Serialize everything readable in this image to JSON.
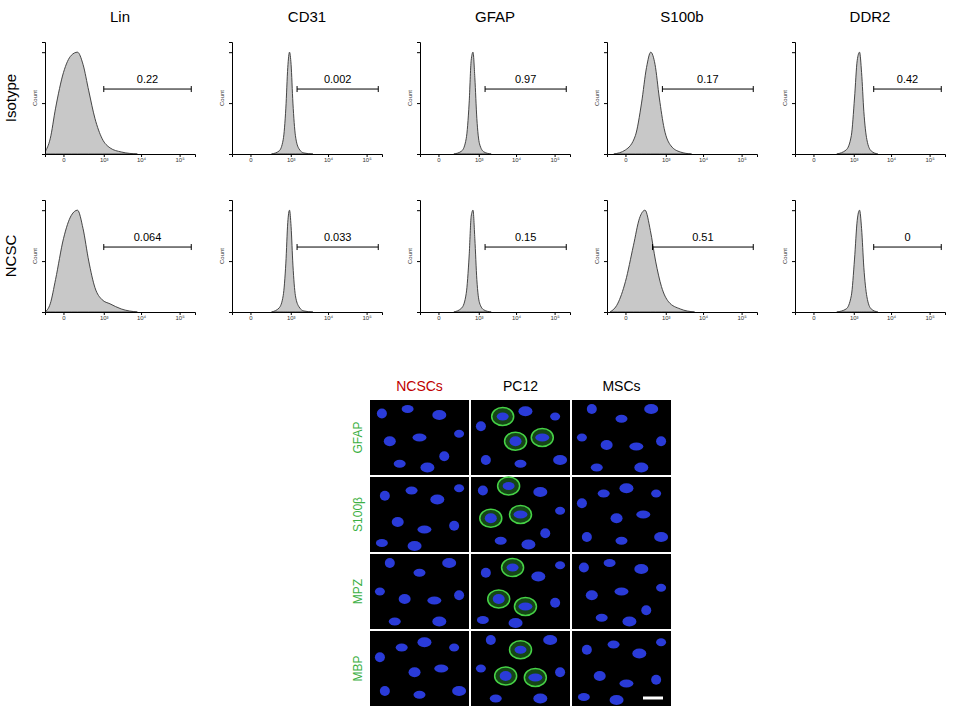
{
  "figure": {
    "column_titles": [
      "Lin",
      "CD31",
      "GFAP",
      "S100b",
      "DDR2"
    ],
    "row_labels": [
      "Isotype",
      "NCSC"
    ]
  },
  "chart_data": [
    {
      "type": "area",
      "ylabel": "Count",
      "color": "#c8c8c8",
      "log": "x",
      "tick_labels": "x",
      "x": [
        -200,
        -120,
        -60,
        0,
        60,
        130,
        220,
        350,
        550,
        900,
        1500,
        3000,
        8000
      ],
      "values": [
        2,
        15,
        45,
        80,
        97,
        100,
        88,
        62,
        35,
        15,
        6,
        2,
        0
      ],
      "xlim": [
        -200,
        250000
      ],
      "xticks": [
        {
          "value": 0,
          "label": "0"
        },
        {
          "value": 1000,
          "label": "10³"
        },
        {
          "value": 10000,
          "label": "10⁴"
        },
        {
          "value": 100000,
          "label": "10⁵"
        }
      ],
      "ylim": [
        0,
        110
      ],
      "yticks": [
        0,
        50,
        100
      ],
      "gate": {
        "range": [
          1000,
          200000
        ],
        "percent": 0.22
      }
    },
    {
      "type": "area",
      "ylabel": "Count",
      "color": "#c8c8c8",
      "log": "x",
      "tick_labels": "x",
      "x": [
        250,
        450,
        600,
        720,
        820,
        920,
        1020,
        1150,
        1350,
        1700,
        2300,
        4000
      ],
      "values": [
        0,
        3,
        14,
        45,
        85,
        100,
        88,
        50,
        18,
        5,
        1,
        0
      ],
      "xlim": [
        -200,
        250000
      ],
      "xticks": [
        {
          "value": 0,
          "label": "0"
        },
        {
          "value": 1000,
          "label": "10³"
        },
        {
          "value": 10000,
          "label": "10⁴"
        },
        {
          "value": 100000,
          "label": "10⁵"
        }
      ],
      "ylim": [
        0,
        110
      ],
      "yticks": [
        0,
        50,
        100
      ],
      "gate": {
        "range": [
          1500,
          200000
        ],
        "percent": 0.002
      }
    },
    {
      "type": "area",
      "ylabel": "Count",
      "color": "#c8c8c8",
      "log": "x",
      "tick_labels": "x",
      "x": [
        150,
        300,
        420,
        520,
        600,
        680,
        770,
        880,
        1050,
        1400,
        2200
      ],
      "values": [
        0,
        3,
        15,
        50,
        92,
        100,
        75,
        35,
        10,
        2,
        0
      ],
      "xlim": [
        -200,
        250000
      ],
      "xticks": [
        {
          "value": 0,
          "label": "0"
        },
        {
          "value": 1000,
          "label": "10³"
        },
        {
          "value": 10000,
          "label": "10⁴"
        },
        {
          "value": 100000,
          "label": "10⁵"
        }
      ],
      "ylim": [
        0,
        110
      ],
      "yticks": [
        0,
        50,
        100
      ],
      "gate": {
        "range": [
          1500,
          200000
        ],
        "percent": 0.97
      }
    },
    {
      "type": "area",
      "ylabel": "Count",
      "color": "#c8c8c8",
      "log": "x",
      "tick_labels": "x",
      "x": [
        -100,
        0,
        80,
        160,
        250,
        350,
        480,
        650,
        900,
        1400,
        2500,
        5000
      ],
      "values": [
        0,
        4,
        18,
        50,
        85,
        100,
        88,
        55,
        25,
        8,
        2,
        0
      ],
      "xlim": [
        -200,
        250000
      ],
      "xticks": [
        {
          "value": 0,
          "label": "0"
        },
        {
          "value": 1000,
          "label": "10³"
        },
        {
          "value": 10000,
          "label": "10⁴"
        },
        {
          "value": 100000,
          "label": "10⁵"
        }
      ],
      "ylim": [
        0,
        110
      ],
      "yticks": [
        0,
        50,
        100
      ],
      "gate": {
        "range": [
          800,
          200000
        ],
        "percent": 0.17
      }
    },
    {
      "type": "area",
      "ylabel": "Count",
      "color": "#c8c8c8",
      "log": "x",
      "tick_labels": "x",
      "x": [
        300,
        600,
        850,
        1050,
        1250,
        1450,
        1650,
        1900,
        2300,
        3000,
        4500
      ],
      "values": [
        0,
        4,
        18,
        55,
        92,
        100,
        80,
        42,
        14,
        3,
        0
      ],
      "xlim": [
        -200,
        250000
      ],
      "xticks": [
        {
          "value": 0,
          "label": "0"
        },
        {
          "value": 1000,
          "label": "10³"
        },
        {
          "value": 10000,
          "label": "10⁴"
        },
        {
          "value": 100000,
          "label": "10⁵"
        }
      ],
      "ylim": [
        0,
        110
      ],
      "yticks": [
        0,
        50,
        100
      ],
      "gate": {
        "range": [
          3500,
          200000
        ],
        "percent": 0.42
      }
    },
    {
      "type": "area",
      "ylabel": "Count",
      "color": "#c8c8c8",
      "log": "x",
      "tick_labels": "x",
      "x": [
        -200,
        -120,
        -60,
        0,
        60,
        130,
        220,
        350,
        550,
        900,
        1500,
        3000,
        8000
      ],
      "values": [
        0,
        8,
        32,
        72,
        95,
        100,
        82,
        50,
        24,
        12,
        8,
        3,
        0
      ],
      "xlim": [
        -200,
        250000
      ],
      "xticks": [
        {
          "value": 0,
          "label": "0"
        },
        {
          "value": 1000,
          "label": "10³"
        },
        {
          "value": 10000,
          "label": "10⁴"
        },
        {
          "value": 100000,
          "label": "10⁵"
        }
      ],
      "ylim": [
        0,
        110
      ],
      "yticks": [
        0,
        50,
        100
      ],
      "gate": {
        "range": [
          1000,
          200000
        ],
        "percent": 0.064
      }
    },
    {
      "type": "area",
      "ylabel": "Count",
      "color": "#c8c8c8",
      "log": "x",
      "tick_labels": "x",
      "x": [
        250,
        450,
        600,
        720,
        820,
        920,
        1020,
        1150,
        1350,
        1700,
        2300,
        4000
      ],
      "values": [
        0,
        4,
        16,
        48,
        88,
        100,
        84,
        46,
        16,
        5,
        1,
        0
      ],
      "xlim": [
        -200,
        250000
      ],
      "xticks": [
        {
          "value": 0,
          "label": "0"
        },
        {
          "value": 1000,
          "label": "10³"
        },
        {
          "value": 10000,
          "label": "10⁴"
        },
        {
          "value": 100000,
          "label": "10⁵"
        }
      ],
      "ylim": [
        0,
        110
      ],
      "yticks": [
        0,
        50,
        100
      ],
      "gate": {
        "range": [
          1500,
          200000
        ],
        "percent": 0.033
      }
    },
    {
      "type": "area",
      "ylabel": "Count",
      "color": "#c8c8c8",
      "log": "x",
      "tick_labels": "x",
      "x": [
        150,
        300,
        420,
        520,
        600,
        680,
        770,
        880,
        1050,
        1400,
        2200
      ],
      "values": [
        0,
        4,
        18,
        55,
        94,
        100,
        72,
        32,
        9,
        2,
        0
      ],
      "xlim": [
        -200,
        250000
      ],
      "xticks": [
        {
          "value": 0,
          "label": "0"
        },
        {
          "value": 1000,
          "label": "10³"
        },
        {
          "value": 10000,
          "label": "10⁴"
        },
        {
          "value": 100000,
          "label": "10⁵"
        }
      ],
      "ylim": [
        0,
        110
      ],
      "yticks": [
        0,
        50,
        100
      ],
      "gate": {
        "range": [
          1500,
          200000
        ],
        "percent": 0.15
      }
    },
    {
      "type": "area",
      "ylabel": "Count",
      "color": "#c8c8c8",
      "log": "x",
      "tick_labels": "x",
      "x": [
        -150,
        -60,
        0,
        60,
        130,
        220,
        340,
        500,
        750,
        1200,
        2500,
        6000
      ],
      "values": [
        0,
        8,
        30,
        65,
        92,
        100,
        80,
        50,
        25,
        10,
        3,
        0
      ],
      "xlim": [
        -200,
        250000
      ],
      "xticks": [
        {
          "value": 0,
          "label": "0"
        },
        {
          "value": 1000,
          "label": "10³"
        },
        {
          "value": 10000,
          "label": "10⁴"
        },
        {
          "value": 100000,
          "label": "10⁵"
        }
      ],
      "ylim": [
        0,
        110
      ],
      "yticks": [
        0,
        50,
        100
      ],
      "gate": {
        "range": [
          400,
          200000
        ],
        "percent": 0.51
      }
    },
    {
      "type": "area",
      "ylabel": "Count",
      "color": "#c8c8c8",
      "log": "x",
      "tick_labels": "x",
      "x": [
        300,
        600,
        850,
        1050,
        1250,
        1450,
        1650,
        1900,
        2300,
        3000,
        4500
      ],
      "values": [
        0,
        3,
        16,
        52,
        90,
        100,
        82,
        44,
        15,
        3,
        0
      ],
      "xlim": [
        -200,
        250000
      ],
      "xticks": [
        {
          "value": 0,
          "label": "0"
        },
        {
          "value": 1000,
          "label": "10³"
        },
        {
          "value": 10000,
          "label": "10⁴"
        },
        {
          "value": 100000,
          "label": "10⁵"
        }
      ],
      "ylim": [
        0,
        110
      ],
      "yticks": [
        0,
        50,
        100
      ],
      "gate": {
        "range": [
          3500,
          200000
        ],
        "percent": 0
      }
    }
  ],
  "micrographs": {
    "columns": [
      {
        "label": "NCSCs",
        "color": "#c00000"
      },
      {
        "label": "PC12",
        "color": "#000000"
      },
      {
        "label": "MSCs",
        "color": "#000000"
      }
    ],
    "rows": [
      {
        "label": "GFAP"
      },
      {
        "label": "S100β"
      },
      {
        "label": "MPZ"
      },
      {
        "label": "MBP"
      }
    ],
    "row_label_color": "#3cb043",
    "stained": [
      [
        false,
        true,
        false
      ],
      [
        false,
        true,
        false
      ],
      [
        false,
        true,
        false
      ],
      [
        false,
        true,
        false
      ]
    ]
  }
}
